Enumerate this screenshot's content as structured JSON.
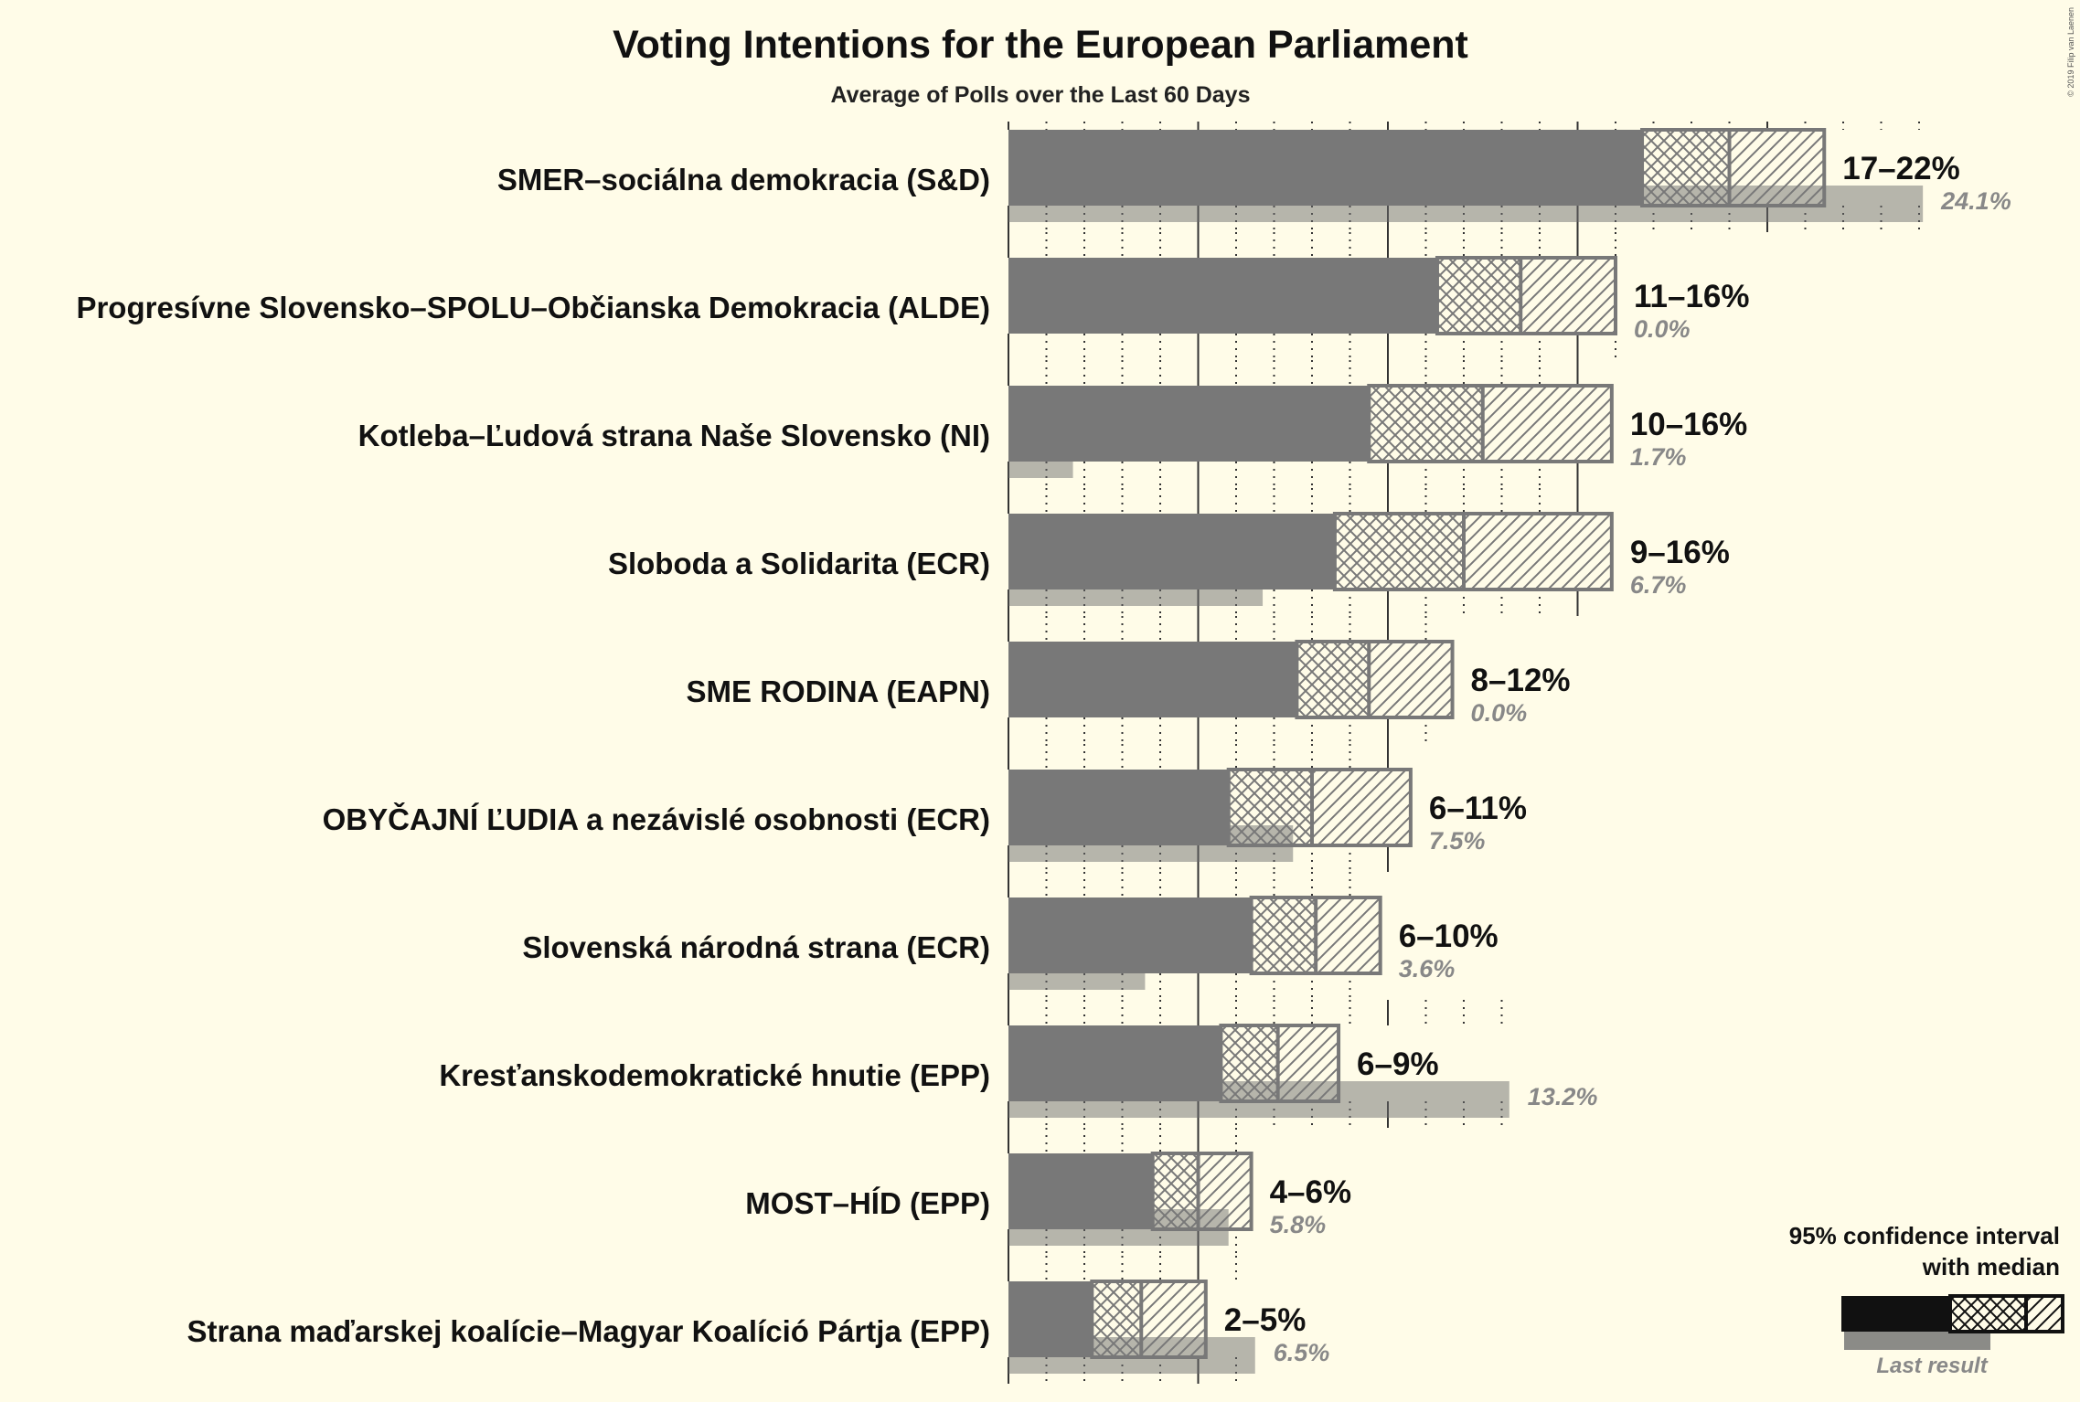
{
  "copyright": "© 2019 Filip van Laenen",
  "colors": {
    "background": "#fffce8",
    "bar": "#787878",
    "ci_stroke": "#787878",
    "last_result": "#6e6e6e",
    "grid": "#333333",
    "legend": "#111111",
    "text": "#111111",
    "muted_text": "#888888"
  },
  "chart_data": {
    "type": "bar",
    "orientation": "horizontal",
    "title": "Voting Intentions for the European Parliament",
    "subtitle": "Average of Polls over the Last 60 Days",
    "categories": [
      "SMER–sociálna demokracia (S&D)",
      "Progresívne Slovensko–SPOLU–Občianska Demokracia (ALDE)",
      "Kotleba–Ľudová strana Naše Slovensko (NI)",
      "Sloboda a Solidarita (ECR)",
      "SME RODINA (EAPN)",
      "OBYČAJNÍ ĽUDIA a nezávislé osobnosti (ECR)",
      "Slovenská národná strana (ECR)",
      "Kresťanskodemokratické hnutie (EPP)",
      "MOST–HÍD (EPP)",
      "Strana maďarskej koalície–Magyar Koalíció Pártja (EPP)"
    ],
    "series": [
      {
        "name": "95% confidence interval",
        "lower": [
          16.7,
          11.3,
          9.5,
          8.6,
          7.6,
          5.8,
          6.4,
          5.6,
          3.8,
          2.2
        ],
        "median": [
          19.0,
          13.5,
          12.5,
          12.0,
          9.5,
          8.0,
          8.1,
          7.1,
          5.0,
          3.5
        ],
        "upper": [
          21.5,
          16.0,
          15.9,
          15.9,
          11.7,
          10.6,
          9.8,
          8.7,
          6.4,
          5.2
        ]
      },
      {
        "name": "Last result",
        "values": [
          24.1,
          0.0,
          1.7,
          6.7,
          0.0,
          7.5,
          3.6,
          13.2,
          5.8,
          6.5
        ]
      }
    ],
    "range_labels": [
      "17–22%",
      "11–16%",
      "10–16%",
      "9–16%",
      "8–12%",
      "6–11%",
      "6–10%",
      "6–9%",
      "4–6%",
      "2–5%"
    ],
    "last_result_labels": [
      "24.1%",
      "0.0%",
      "1.7%",
      "6.7%",
      "0.0%",
      "7.5%",
      "3.6%",
      "13.2%",
      "5.8%",
      "6.5%"
    ],
    "grid": {
      "minor_step": 1,
      "major_step": 5
    },
    "legend": {
      "ci_note": "with median",
      "position": "bottom-right"
    }
  }
}
